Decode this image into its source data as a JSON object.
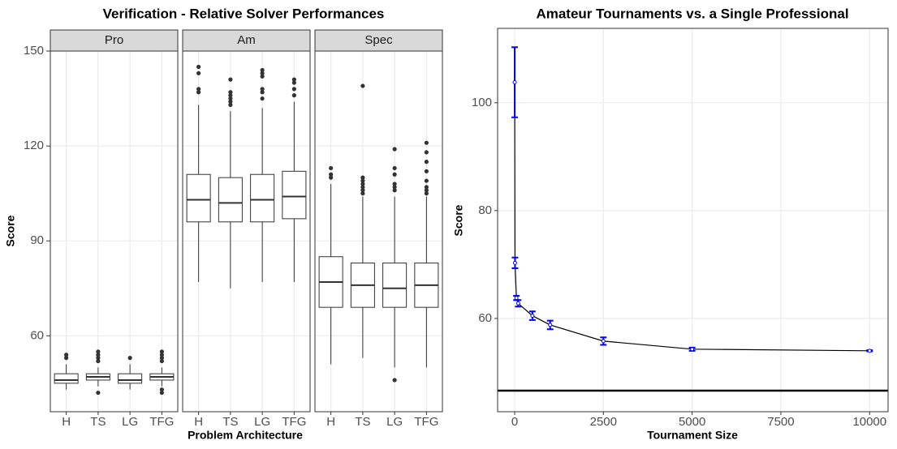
{
  "chart_data": [
    {
      "type": "box",
      "title": "Verification - Relative Solver Performances",
      "x_label": "Problem Architecture",
      "y_label": "Score",
      "categories": [
        "H",
        "TS",
        "LG",
        "TFG"
      ],
      "ylim": [
        36,
        150
      ],
      "yticks": [
        60,
        90,
        120,
        150
      ],
      "grid": true,
      "facets": [
        {
          "name": "Pro",
          "boxes": [
            {
              "min": 43,
              "q1": 45,
              "median": 46,
              "q3": 48,
              "max": 51,
              "outliers": [
                53,
                54
              ]
            },
            {
              "min": 44,
              "q1": 46,
              "median": 47,
              "q3": 48,
              "max": 50,
              "outliers": [
                42,
                52,
                53,
                54,
                55
              ]
            },
            {
              "min": 43,
              "q1": 45,
              "median": 46,
              "q3": 48,
              "max": 51,
              "outliers": [
                53
              ]
            },
            {
              "min": 44,
              "q1": 46,
              "median": 47,
              "q3": 48,
              "max": 50,
              "outliers": [
                42,
                43,
                52,
                53,
                54,
                55
              ]
            }
          ]
        },
        {
          "name": "Am",
          "boxes": [
            {
              "min": 77,
              "q1": 96,
              "median": 103,
              "q3": 111,
              "max": 133,
              "outliers": [
                137,
                138,
                143,
                145
              ]
            },
            {
              "min": 75,
              "q1": 96,
              "median": 102,
              "q3": 110,
              "max": 131,
              "outliers": [
                133,
                134,
                135,
                136,
                137,
                141
              ]
            },
            {
              "min": 77,
              "q1": 96,
              "median": 103,
              "q3": 111,
              "max": 132,
              "outliers": [
                135,
                137,
                138,
                142,
                143,
                144
              ]
            },
            {
              "min": 77,
              "q1": 97,
              "median": 104,
              "q3": 112,
              "max": 134,
              "outliers": [
                136,
                138,
                140,
                141
              ]
            }
          ]
        },
        {
          "name": "Spec",
          "boxes": [
            {
              "min": 51,
              "q1": 69,
              "median": 77,
              "q3": 85,
              "max": 108,
              "outliers": [
                110,
                111,
                113
              ]
            },
            {
              "min": 53,
              "q1": 69,
              "median": 76,
              "q3": 83,
              "max": 104,
              "outliers": [
                105,
                106,
                107,
                108,
                109,
                110,
                139
              ]
            },
            {
              "min": 50,
              "q1": 69,
              "median": 75,
              "q3": 83,
              "max": 104,
              "outliers": [
                46,
                106,
                107,
                108,
                111,
                113,
                119
              ]
            },
            {
              "min": 50,
              "q1": 69,
              "median": 76,
              "q3": 83,
              "max": 104,
              "outliers": [
                105,
                106,
                107,
                109,
                112,
                115,
                118,
                121
              ]
            }
          ]
        }
      ]
    },
    {
      "type": "line",
      "title": "Amateur Tournaments vs. a Single Professional",
      "x_label": "Tournament Size",
      "y_label": "Score",
      "x": [
        1,
        10,
        50,
        100,
        500,
        1000,
        2500,
        5000,
        10000
      ],
      "values": [
        103.8,
        70.3,
        63.8,
        62.8,
        60.5,
        58.8,
        55.8,
        54.3,
        54.0
      ],
      "errors": [
        6.5,
        1.0,
        0.4,
        0.6,
        0.8,
        0.8,
        0.7,
        0.3,
        0.1
      ],
      "color": "#0000ff",
      "line_color": "#000000",
      "hline": 46.6,
      "xlim": [
        -480,
        10520
      ],
      "ylim": [
        42.7,
        113.8
      ],
      "xticks": [
        0,
        2500,
        5000,
        7500,
        10000
      ],
      "yticks": [
        60,
        80,
        100
      ],
      "grid": true
    }
  ]
}
